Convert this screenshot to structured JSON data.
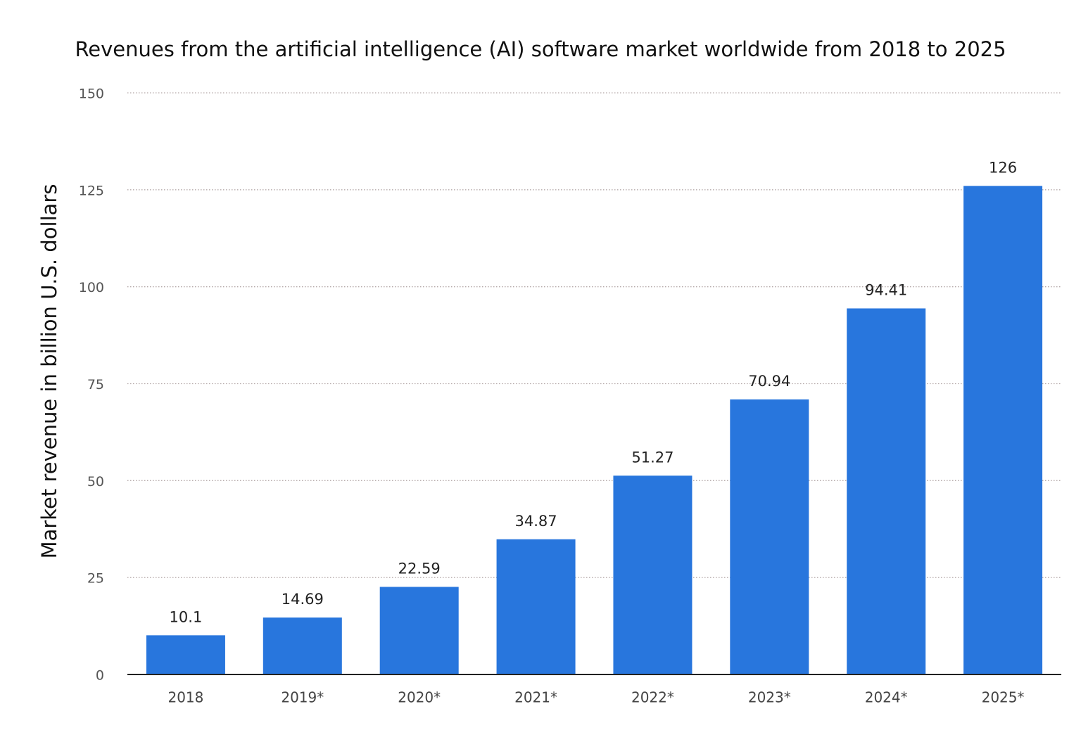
{
  "chart_data": {
    "type": "bar",
    "title": "Revenues from the artificial intelligence (AI) software market worldwide from 2018 to 2025",
    "y_label": "Market revenue in billion U.S. dollars",
    "categories": [
      "2018",
      "2019*",
      "2020*",
      "2021*",
      "2022*",
      "2023*",
      "2024*",
      "2025*"
    ],
    "values": [
      10.1,
      14.69,
      22.59,
      34.87,
      51.27,
      70.94,
      94.41,
      126
    ],
    "color": "#2876dd",
    "ylim": [
      0,
      150
    ],
    "yticks": [
      0,
      25,
      50,
      75,
      100,
      125,
      150
    ],
    "grid": true
  }
}
